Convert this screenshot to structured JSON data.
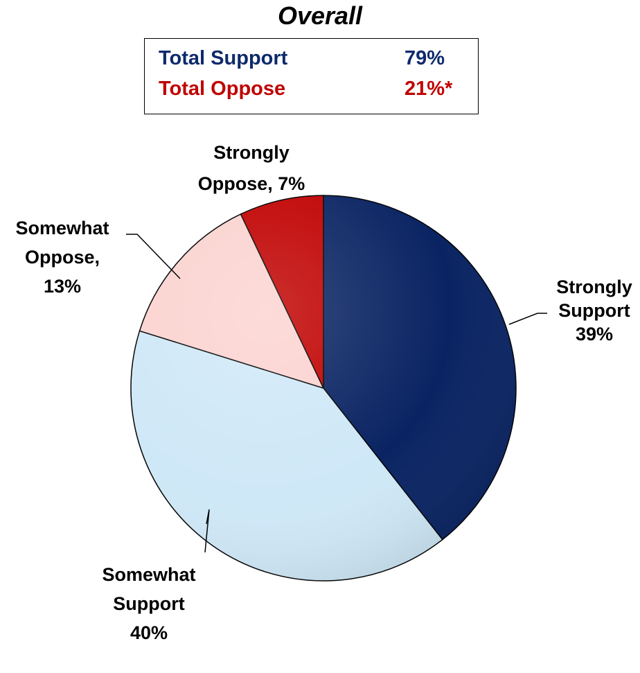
{
  "title": "Overall",
  "summary": {
    "rows": [
      {
        "label": "Total Support",
        "value": "79%",
        "color": "#0d2a6b"
      },
      {
        "label": "Total Oppose",
        "value": "21%*",
        "color": "#c00000"
      }
    ]
  },
  "colors": {
    "strongly_support": "#0a2463",
    "somewhat_support": "#cfe8f7",
    "somewhat_oppose": "#fbd3d0",
    "strongly_oppose": "#c00000"
  },
  "chart_data": {
    "type": "pie",
    "title": "Overall",
    "slices": [
      {
        "name": "Strongly Support",
        "value": 39,
        "color": "#0a2463",
        "label_lines": [
          "Strongly",
          "Support",
          "39%"
        ]
      },
      {
        "name": "Somewhat Support",
        "value": 40,
        "color": "#cfe8f7",
        "label_lines": [
          "Somewhat",
          "Support",
          "40%"
        ]
      },
      {
        "name": "Somewhat Oppose",
        "value": 13,
        "color": "#fbd3d0",
        "label_lines": [
          "Somewhat",
          "Oppose,",
          "13%"
        ]
      },
      {
        "name": "Strongly Oppose",
        "value": 7,
        "color": "#c00000",
        "label_lines": [
          "Strongly",
          "Oppose, 7%"
        ]
      }
    ],
    "start": "12 o'clock",
    "direction": "clockwise",
    "legend": "none"
  }
}
